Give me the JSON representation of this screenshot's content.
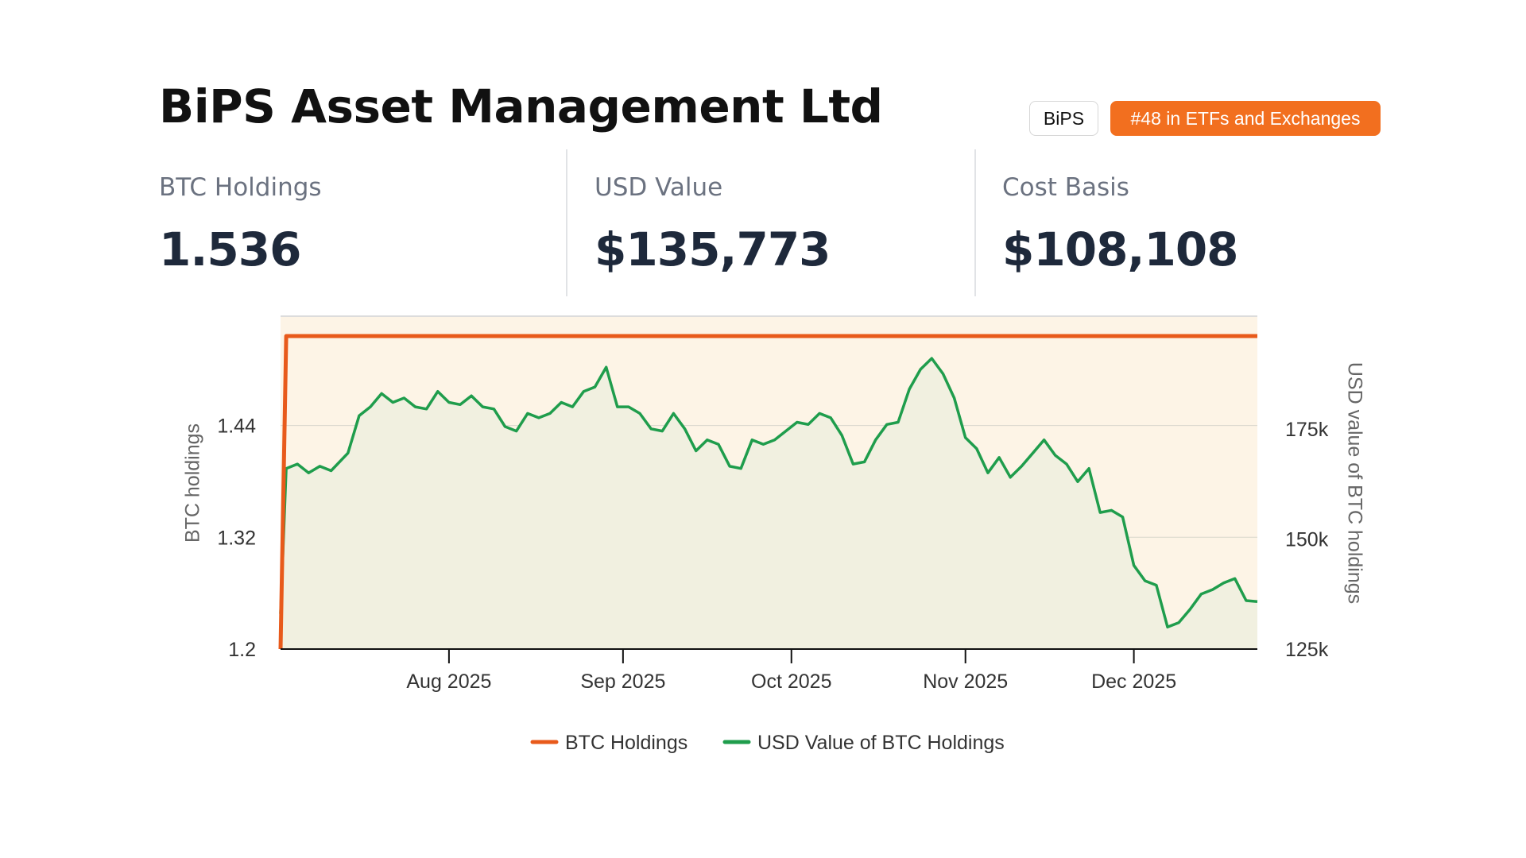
{
  "header": {
    "title": "BiPS Asset Management Ltd",
    "ticker": "BiPS",
    "rank_badge": "#48 in ETFs and Exchanges"
  },
  "stats": [
    {
      "label": "BTC Holdings",
      "value": "1.536"
    },
    {
      "label": "USD Value",
      "value": "$135,773"
    },
    {
      "label": "Cost Basis",
      "value": "$108,108"
    }
  ],
  "colors": {
    "accent": "#f26f1f",
    "btc_line": "#e85a1b",
    "usd_line": "#1f9d4c",
    "plot_background": "#fdf4e6",
    "usd_area_fill": "#f1f0e0"
  },
  "chart_data": {
    "type": "line",
    "x_axis": {
      "tick_labels": [
        "Aug 2025",
        "Sep 2025",
        "Oct 2025",
        "Nov 2025",
        "Dec 2025"
      ],
      "tick_dates": [
        "2025-08-01",
        "2025-09-01",
        "2025-10-01",
        "2025-11-01",
        "2025-12-01"
      ],
      "range": [
        "2025-07-02",
        "2025-12-23"
      ]
    },
    "y_left": {
      "label": "BTC holdings",
      "ticks": [
        1.2,
        1.32,
        1.44
      ],
      "tick_labels": [
        "1.2",
        "1.32",
        "1.44"
      ],
      "range": [
        1.2,
        1.536
      ]
    },
    "y_right": {
      "label": "USD value of BTC holdings",
      "ticks": [
        125000,
        150000,
        175000
      ],
      "tick_labels": [
        "125k",
        "150k",
        "175k"
      ],
      "range": [
        125000,
        193000
      ]
    },
    "grid": true,
    "legend_position": "bottom",
    "series": [
      {
        "name": "BTC Holdings",
        "axis": "left",
        "color": "#e85a1b",
        "points": [
          [
            "2025-07-02",
            1.2
          ],
          [
            "2025-07-03",
            1.536
          ],
          [
            "2025-12-23",
            1.536
          ]
        ]
      },
      {
        "name": "USD Value of BTC Holdings",
        "axis": "right",
        "color": "#1f9d4c",
        "area": true,
        "points": [
          [
            "2025-07-02",
            133000
          ],
          [
            "2025-07-03",
            166000
          ],
          [
            "2025-07-05",
            167000
          ],
          [
            "2025-07-07",
            165000
          ],
          [
            "2025-07-09",
            166500
          ],
          [
            "2025-07-11",
            165500
          ],
          [
            "2025-07-14",
            169500
          ],
          [
            "2025-07-16",
            178000
          ],
          [
            "2025-07-18",
            180000
          ],
          [
            "2025-07-20",
            183000
          ],
          [
            "2025-07-22",
            181000
          ],
          [
            "2025-07-24",
            182000
          ],
          [
            "2025-07-26",
            180000
          ],
          [
            "2025-07-28",
            179500
          ],
          [
            "2025-07-30",
            183500
          ],
          [
            "2025-08-01",
            181000
          ],
          [
            "2025-08-03",
            180500
          ],
          [
            "2025-08-05",
            182500
          ],
          [
            "2025-08-07",
            180000
          ],
          [
            "2025-08-09",
            179500
          ],
          [
            "2025-08-11",
            175500
          ],
          [
            "2025-08-13",
            174500
          ],
          [
            "2025-08-15",
            178500
          ],
          [
            "2025-08-17",
            177500
          ],
          [
            "2025-08-19",
            178500
          ],
          [
            "2025-08-21",
            181000
          ],
          [
            "2025-08-23",
            180000
          ],
          [
            "2025-08-25",
            183500
          ],
          [
            "2025-08-27",
            184500
          ],
          [
            "2025-08-29",
            189000
          ],
          [
            "2025-08-31",
            180000
          ],
          [
            "2025-09-02",
            180000
          ],
          [
            "2025-09-04",
            178500
          ],
          [
            "2025-09-06",
            175000
          ],
          [
            "2025-09-08",
            174500
          ],
          [
            "2025-09-10",
            178500
          ],
          [
            "2025-09-12",
            175000
          ],
          [
            "2025-09-14",
            170000
          ],
          [
            "2025-09-16",
            172500
          ],
          [
            "2025-09-18",
            171500
          ],
          [
            "2025-09-20",
            166500
          ],
          [
            "2025-09-22",
            166000
          ],
          [
            "2025-09-24",
            172500
          ],
          [
            "2025-09-26",
            171500
          ],
          [
            "2025-09-28",
            172500
          ],
          [
            "2025-09-30",
            174500
          ],
          [
            "2025-10-02",
            176500
          ],
          [
            "2025-10-04",
            176000
          ],
          [
            "2025-10-06",
            178500
          ],
          [
            "2025-10-08",
            177500
          ],
          [
            "2025-10-10",
            173500
          ],
          [
            "2025-10-12",
            167000
          ],
          [
            "2025-10-14",
            167500
          ],
          [
            "2025-10-16",
            172500
          ],
          [
            "2025-10-18",
            176000
          ],
          [
            "2025-10-20",
            176500
          ],
          [
            "2025-10-22",
            184000
          ],
          [
            "2025-10-24",
            188500
          ],
          [
            "2025-10-26",
            191000
          ],
          [
            "2025-10-28",
            187500
          ],
          [
            "2025-10-30",
            182000
          ],
          [
            "2025-11-01",
            173000
          ],
          [
            "2025-11-03",
            170500
          ],
          [
            "2025-11-05",
            165000
          ],
          [
            "2025-11-07",
            168500
          ],
          [
            "2025-11-09",
            164000
          ],
          [
            "2025-11-11",
            166500
          ],
          [
            "2025-11-13",
            169500
          ],
          [
            "2025-11-15",
            172500
          ],
          [
            "2025-11-17",
            169000
          ],
          [
            "2025-11-19",
            167000
          ],
          [
            "2025-11-21",
            163000
          ],
          [
            "2025-11-23",
            166000
          ],
          [
            "2025-11-25",
            156000
          ],
          [
            "2025-11-27",
            156500
          ],
          [
            "2025-11-29",
            155000
          ],
          [
            "2025-12-01",
            144000
          ],
          [
            "2025-12-03",
            140500
          ],
          [
            "2025-12-05",
            139500
          ],
          [
            "2025-12-07",
            130000
          ],
          [
            "2025-12-09",
            131000
          ],
          [
            "2025-12-11",
            134000
          ],
          [
            "2025-12-13",
            137500
          ],
          [
            "2025-12-15",
            138500
          ],
          [
            "2025-12-17",
            140000
          ],
          [
            "2025-12-19",
            141000
          ],
          [
            "2025-12-21",
            136000
          ],
          [
            "2025-12-23",
            135773
          ]
        ]
      }
    ]
  }
}
